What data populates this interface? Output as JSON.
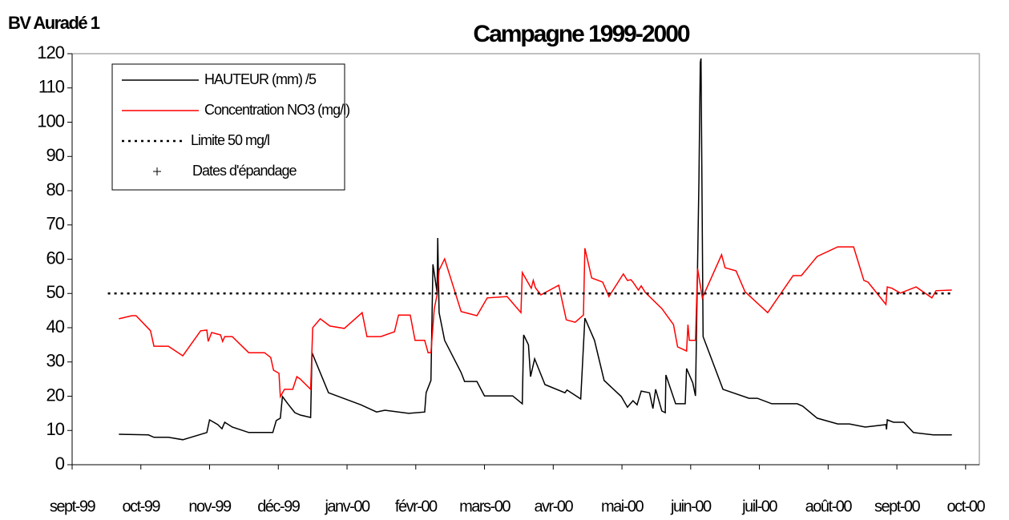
{
  "chart_data": {
    "type": "line",
    "title": "Campagne 1999-2000",
    "subtitle": "BV Auradé 1",
    "legend": "upper left",
    "grid": false,
    "xlim": [
      0,
      13.2
    ],
    "xticks": [
      {
        "value": 0,
        "label": "sept-99"
      },
      {
        "value": 1,
        "label": "oct-99"
      },
      {
        "value": 2,
        "label": "nov-99"
      },
      {
        "value": 3,
        "label": "déc-99"
      },
      {
        "value": 4,
        "label": "janv-00"
      },
      {
        "value": 5,
        "label": "févr-00"
      },
      {
        "value": 6,
        "label": "mars-00"
      },
      {
        "value": 7,
        "label": "avr-00"
      },
      {
        "value": 8,
        "label": "mai-00"
      },
      {
        "value": 9,
        "label": "juin-00"
      },
      {
        "value": 10,
        "label": "juil-00"
      },
      {
        "value": 11,
        "label": "août-00"
      },
      {
        "value": 12,
        "label": "sept-00"
      },
      {
        "value": 13,
        "label": "oct-00"
      }
    ],
    "ylim": [
      0,
      120
    ],
    "yticks": [
      0,
      10,
      20,
      30,
      40,
      50,
      60,
      70,
      80,
      90,
      100,
      110,
      120
    ],
    "series": [
      {
        "name": "HAUTEUR (mm) /5",
        "color": "#000000",
        "style": "solid",
        "x": [
          0.68,
          1.11,
          1.19,
          1.4,
          1.61,
          1.96,
          2.0,
          2.12,
          2.18,
          2.22,
          2.33,
          2.57,
          2.92,
          2.97,
          3.03,
          3.06,
          3.15,
          3.24,
          3.32,
          3.47,
          3.49,
          3.73,
          4.2,
          4.43,
          4.55,
          4.9,
          5.13,
          5.15,
          5.22,
          5.25,
          5.31,
          5.32,
          5.34,
          5.42,
          5.66,
          5.71,
          5.89,
          6.0,
          6.41,
          6.55,
          6.57,
          6.64,
          6.67,
          6.73,
          6.88,
          7.17,
          7.2,
          7.4,
          7.46,
          7.6,
          7.74,
          7.99,
          8.08,
          8.16,
          8.22,
          8.28,
          8.4,
          8.45,
          8.49,
          8.58,
          8.63,
          8.64,
          8.78,
          8.92,
          8.94,
          9.03,
          9.07,
          9.12,
          9.14,
          9.15,
          9.18,
          9.47,
          9.85,
          9.97,
          10.18,
          10.55,
          10.63,
          10.84,
          11.14,
          11.31,
          11.54,
          11.84,
          11.85,
          11.86,
          11.95,
          12.1,
          12.24,
          12.53,
          12.8
        ],
        "values": [
          8.9,
          8.7,
          8.0,
          8.0,
          7.3,
          9.4,
          13.1,
          11.7,
          10.5,
          12.4,
          11,
          9.4,
          9.4,
          12.9,
          13.6,
          19.9,
          17.5,
          15.2,
          14.5,
          13.8,
          32.7,
          21,
          17.5,
          15.4,
          15.9,
          15,
          15.4,
          21,
          24.6,
          58.5,
          50.3,
          66.2,
          44.4,
          36.3,
          26.9,
          24.3,
          24.3,
          20.1,
          20.1,
          17.8,
          37.9,
          35,
          25.7,
          30.9,
          23.4,
          21,
          21.8,
          19.2,
          42.8,
          36.3,
          24.6,
          19.9,
          16.8,
          18.7,
          17.5,
          21.5,
          21,
          16.4,
          22,
          15.7,
          15.2,
          26.2,
          17.8,
          17.8,
          28.1,
          23.9,
          20.1,
          83,
          117.4,
          118.6,
          37.4,
          22,
          19.4,
          19.4,
          17.8,
          17.8,
          17.1,
          13.6,
          11.9,
          11.9,
          11,
          11.7,
          10.3,
          13.1,
          12.4,
          12.4,
          9.4,
          8.7,
          8.7
        ]
      },
      {
        "name": "Concentration NO3 (mg/l)",
        "color": "#ff0000",
        "style": "solid",
        "x": [
          0.68,
          0.87,
          0.93,
          1.14,
          1.19,
          1.4,
          1.61,
          1.87,
          1.96,
          1.98,
          2.03,
          2.16,
          2.19,
          2.22,
          2.33,
          2.57,
          2.8,
          2.89,
          2.93,
          3.01,
          3.03,
          3.09,
          3.21,
          3.27,
          3.32,
          3.47,
          3.5,
          3.61,
          3.75,
          3.96,
          4.22,
          4.29,
          4.49,
          4.69,
          4.75,
          4.92,
          4.99,
          5.13,
          5.18,
          5.22,
          5.27,
          5.31,
          5.34,
          5.42,
          5.66,
          5.89,
          6.04,
          6.33,
          6.53,
          6.55,
          6.68,
          6.71,
          6.74,
          6.82,
          7.08,
          7.19,
          7.32,
          7.44,
          7.46,
          7.56,
          7.72,
          7.81,
          8.02,
          8.08,
          8.13,
          8.16,
          8.24,
          8.28,
          8.34,
          8.58,
          8.75,
          8.81,
          8.94,
          8.96,
          8.98,
          9.07,
          9.1,
          9.17,
          9.45,
          9.5,
          9.66,
          9.79,
          10.12,
          10.49,
          10.61,
          10.84,
          11.14,
          11.37,
          11.52,
          11.58,
          11.84,
          11.86,
          11.93,
          12.05,
          12.28,
          12.51,
          12.57,
          12.8
        ],
        "values": [
          42.6,
          43.5,
          43.5,
          39.1,
          34.6,
          34.6,
          31.8,
          39.1,
          39.3,
          36,
          38.6,
          37.9,
          36,
          37.4,
          37.4,
          32.7,
          32.7,
          31.3,
          27.6,
          26.7,
          19.9,
          22,
          22,
          25.7,
          25,
          22,
          40,
          42.6,
          40.5,
          39.8,
          44.4,
          37.4,
          37.4,
          38.8,
          43.7,
          43.7,
          36.3,
          36.3,
          32.7,
          32.7,
          45.6,
          49.6,
          56.8,
          60.1,
          44.7,
          43.5,
          48.7,
          49.1,
          44.4,
          56.1,
          51.5,
          53.8,
          51.7,
          49.6,
          52.4,
          42.3,
          41.6,
          43.7,
          63.2,
          54.5,
          53.3,
          49.1,
          55.7,
          53.8,
          54,
          53.3,
          51,
          52.2,
          50.3,
          45.6,
          40.9,
          34.4,
          33.2,
          40.9,
          36.3,
          36.3,
          57.3,
          48.7,
          61.3,
          57.5,
          56.6,
          50.5,
          44.4,
          55.2,
          55.2,
          60.8,
          63.6,
          63.6,
          53.8,
          53.3,
          46.8,
          51.9,
          51.5,
          50.1,
          51.9,
          48.7,
          50.8,
          51
        ]
      },
      {
        "name": "Limite 50 mg/l",
        "color": "#000000",
        "style": "dotted",
        "x": [
          0.52,
          12.83
        ],
        "values": [
          50,
          50
        ]
      },
      {
        "name": "Dates d'épandage",
        "color": "#000000",
        "style": "marker",
        "x": [],
        "values": []
      }
    ]
  }
}
